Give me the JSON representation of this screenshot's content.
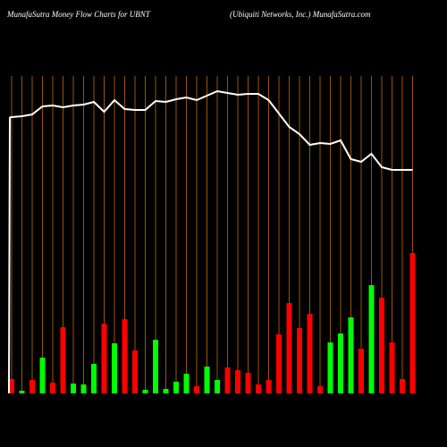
{
  "chart_data": {
    "type": "bar",
    "title": "MunafaSutra  Money Flow  Charts for UBNT",
    "subtitle": "(Ubiquiti   Networks,  Inc.) MunafaSutra.com",
    "categories": [
      null,
      null,
      null,
      null,
      null,
      null,
      null,
      null,
      null,
      null,
      null,
      null,
      null,
      null,
      null,
      null,
      null,
      null,
      null,
      null,
      null,
      null,
      null,
      null,
      null,
      null,
      null,
      null,
      null,
      null,
      null,
      null,
      null,
      null,
      null,
      null,
      null,
      null,
      null,
      null
    ],
    "values": [
      16,
      3,
      15,
      40,
      12,
      74,
      11,
      10,
      33,
      78,
      56,
      83,
      48,
      4,
      60,
      5,
      13,
      22,
      8,
      30,
      15,
      29,
      26,
      23,
      10,
      15,
      66,
      101,
      73,
      89,
      8,
      57,
      67,
      85,
      50,
      121,
      107,
      57,
      16,
      157
    ],
    "colors": [
      "red",
      "lime",
      "red",
      "lime",
      "red",
      "red",
      "lime",
      "lime",
      "lime",
      "red",
      "lime",
      "red",
      "red",
      "lime",
      "lime",
      "lime",
      "lime",
      "lime",
      "red",
      "lime",
      "lime",
      "red",
      "red",
      "red",
      "red",
      "red",
      "red",
      "red",
      "red",
      "red",
      "red",
      "lime",
      "lime",
      "lime",
      "red",
      "lime",
      "red",
      "red",
      "red",
      "red"
    ],
    "line": {
      "type": "line",
      "color": "white",
      "values": [
        309,
        310,
        312,
        321,
        322,
        320,
        322,
        323,
        326,
        315,
        328,
        318,
        317,
        317,
        327,
        326,
        329,
        331,
        328,
        333,
        338,
        336,
        334,
        335,
        335,
        328,
        313,
        298,
        290,
        278,
        280,
        279,
        283,
        262,
        259,
        268,
        253,
        250,
        250,
        250
      ]
    },
    "ylim": [
      0,
      440
    ],
    "grid_color": "#c46a00"
  }
}
